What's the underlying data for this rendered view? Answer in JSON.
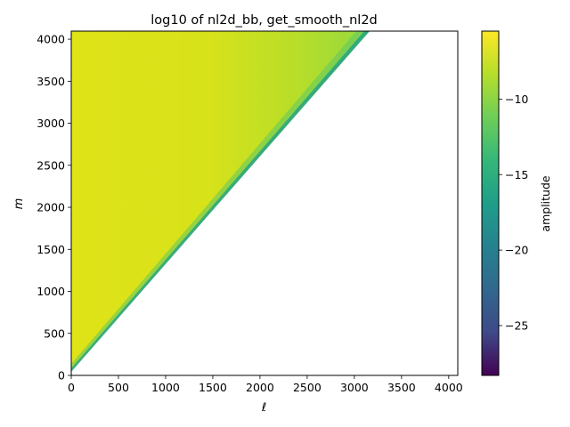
{
  "chart_data": {
    "type": "heatmap",
    "title": "log10 of nl2d_bb, get_smooth_nl2d",
    "xlabel": "ℓ",
    "ylabel": "m",
    "xlim": [
      0,
      4096
    ],
    "ylim": [
      0,
      4096
    ],
    "x_ticks": [
      0,
      500,
      1000,
      1500,
      2000,
      2500,
      3000,
      3500,
      4000
    ],
    "y_ticks": [
      0,
      500,
      1000,
      1500,
      2000,
      2500,
      3000,
      3500,
      4000
    ],
    "colorbar": {
      "label": "amplitude",
      "colormap": "viridis",
      "range": [
        -28.3,
        -5.5
      ],
      "ticks": [
        -10,
        -15,
        -20,
        -25
      ],
      "tick_labels": [
        "−10",
        "−15",
        "−20",
        "−25"
      ]
    },
    "region": "filled where m ≥ 1.3·ℓ (upper-left triangle); blank elsewhere",
    "value_trend": "≈ −6 near the ℓ=0 edge, ≈ −9 toward large ℓ, dropping to ≈ −17 along the lower boundary edge",
    "grid": false
  }
}
